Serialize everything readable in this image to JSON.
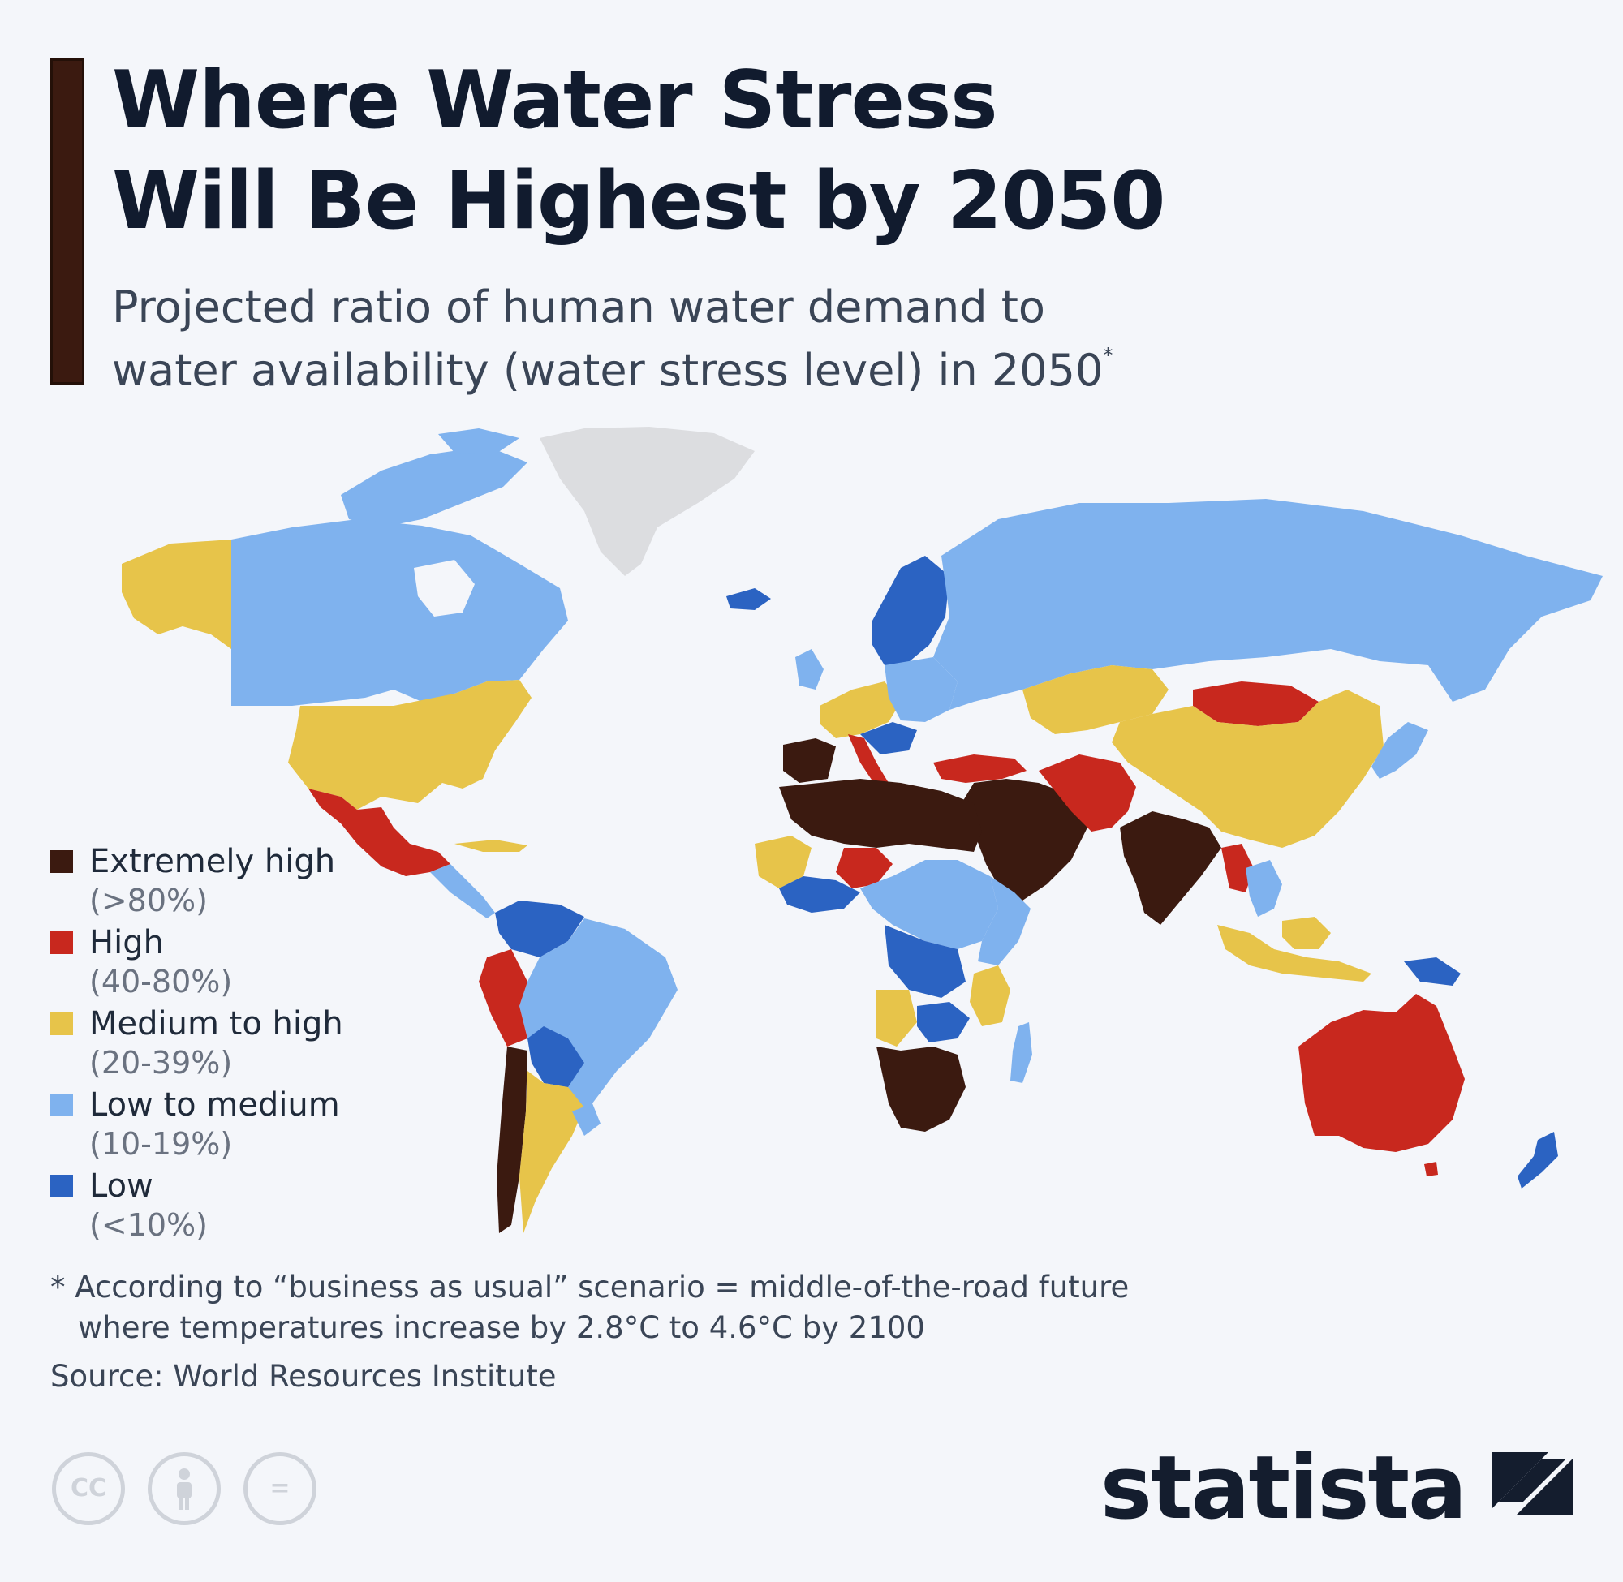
{
  "title": {
    "line1": "Where Water Stress",
    "line2": "Will Be Highest by 2050"
  },
  "subtitle": {
    "line1": "Projected ratio of human water demand to",
    "line2": "water availability (water stress level) in 2050",
    "marker": "*"
  },
  "colors": {
    "extremely_high": "#3b1a10",
    "high": "#c8281e",
    "medium_to_high": "#e7c44a",
    "low_to_medium": "#7fb2ee",
    "low": "#2b63c2",
    "no_data": "#dcdde0",
    "accent": "#3b1a10"
  },
  "legend": [
    {
      "label": "Extremely high",
      "range": "(>80%)",
      "color": "#3b1a10"
    },
    {
      "label": "High",
      "range": "(40-80%)",
      "color": "#c8281e"
    },
    {
      "label": "Medium to high",
      "range": "(20-39%)",
      "color": "#e7c44a"
    },
    {
      "label": "Low to medium",
      "range": "(10-19%)",
      "color": "#7fb2ee"
    },
    {
      "label": "Low",
      "range": "(<10%)",
      "color": "#2b63c2"
    }
  ],
  "footnote": {
    "line1": "* According to “business as usual” scenario = middle-of-the-road future",
    "line2": "where temperatures increase by 2.8°C to 4.6°C by 2100"
  },
  "source": "Source: World Resources Institute",
  "license_icons": [
    "cc-icon",
    "attribution-icon",
    "no-derivatives-icon"
  ],
  "license_text": {
    "cc": "CC",
    "nd": "="
  },
  "logo": {
    "text": "statista"
  }
}
